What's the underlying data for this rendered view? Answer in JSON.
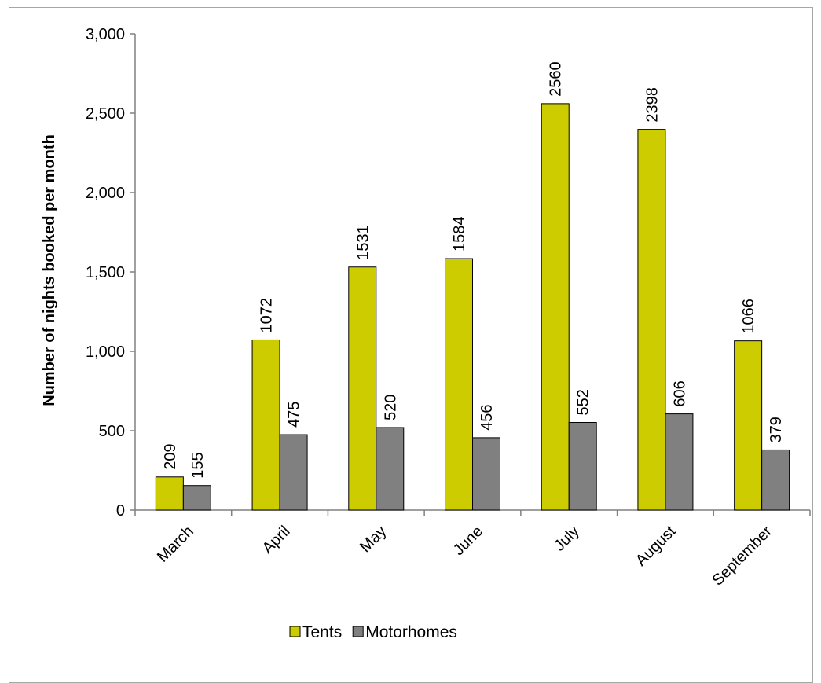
{
  "chart_data": {
    "type": "bar",
    "ylabel": "Number of nights booked per month",
    "xlabel": "",
    "ylim": [
      0,
      3000
    ],
    "yticks": [
      0,
      500,
      1000,
      1500,
      2000,
      2500,
      3000
    ],
    "ytick_labels": [
      "0",
      "500",
      "1,000",
      "1,500",
      "2,000",
      "2,500",
      "3,000"
    ],
    "categories": [
      "March",
      "April",
      "May",
      "June",
      "July",
      "August",
      "September"
    ],
    "series": [
      {
        "name": "Tents",
        "color": "#cccc00",
        "values": [
          209,
          1072,
          1531,
          1584,
          2560,
          2398,
          1066
        ],
        "labels": [
          "209",
          "1072",
          "1531",
          "1584",
          "2560",
          "2398",
          "1066"
        ]
      },
      {
        "name": "Motorhomes",
        "color": "#808080",
        "values": [
          155,
          475,
          520,
          456,
          552,
          606,
          379
        ],
        "labels": [
          "155",
          "475",
          "520",
          "456",
          "552",
          "606",
          "379"
        ]
      }
    ],
    "grid": false,
    "legend_position": "bottom"
  }
}
